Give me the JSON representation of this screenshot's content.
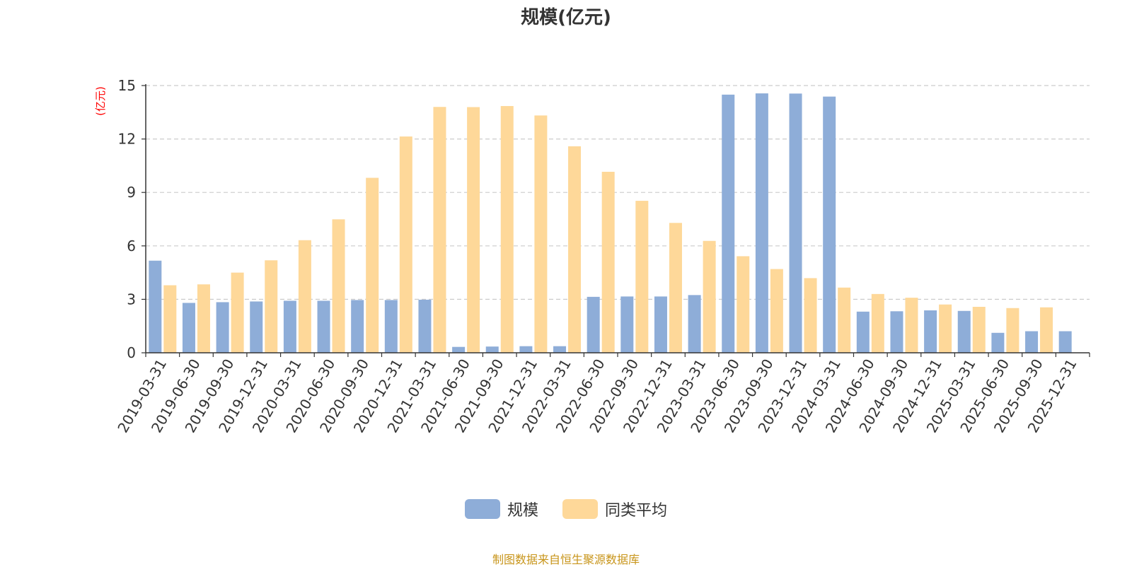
{
  "chart_data": {
    "type": "bar",
    "title": "规模(亿元)",
    "ylabel": "(亿元)",
    "ylim": [
      0,
      15
    ],
    "yticks": [
      0,
      3,
      6,
      9,
      12,
      15
    ],
    "grid": true,
    "legend_position": "bottom-center",
    "categories": [
      "2019-03-31",
      "2019-06-30",
      "2019-09-30",
      "2019-12-31",
      "2020-03-31",
      "2020-06-30",
      "2020-09-30",
      "2020-12-31",
      "2021-03-31",
      "2021-06-30",
      "2021-09-30",
      "2021-12-31",
      "2022-03-31",
      "2022-06-30",
      "2022-09-30",
      "2022-12-31",
      "2023-03-31",
      "2023-06-30",
      "2023-09-30",
      "2023-12-31",
      "2024-03-31",
      "2024-06-30",
      "2024-09-30",
      "2024-12-31",
      "2025-03-31",
      "2025-06-30",
      "2025-09-30",
      "2025-12-31"
    ],
    "series": [
      {
        "name": "规模",
        "color": "#8eadd8",
        "values": [
          5.17,
          2.8,
          2.84,
          2.88,
          2.92,
          2.92,
          2.96,
          2.96,
          2.98,
          0.33,
          0.35,
          0.37,
          0.37,
          3.14,
          3.16,
          3.16,
          3.24,
          14.49,
          14.56,
          14.55,
          14.38,
          2.31,
          2.33,
          2.38,
          2.35,
          1.12,
          1.21,
          1.21
        ]
      },
      {
        "name": "同类平均",
        "color": "#fed899",
        "values": [
          3.79,
          3.84,
          4.5,
          5.19,
          6.32,
          7.49,
          9.82,
          12.14,
          13.8,
          13.79,
          13.85,
          13.32,
          11.59,
          10.16,
          8.53,
          7.29,
          6.28,
          5.42,
          4.7,
          4.19,
          3.66,
          3.3,
          3.09,
          2.71,
          2.58,
          2.51,
          2.55,
          null
        ]
      }
    ]
  },
  "footer": {
    "source_note": "制图数据来自恒生聚源数据库"
  }
}
